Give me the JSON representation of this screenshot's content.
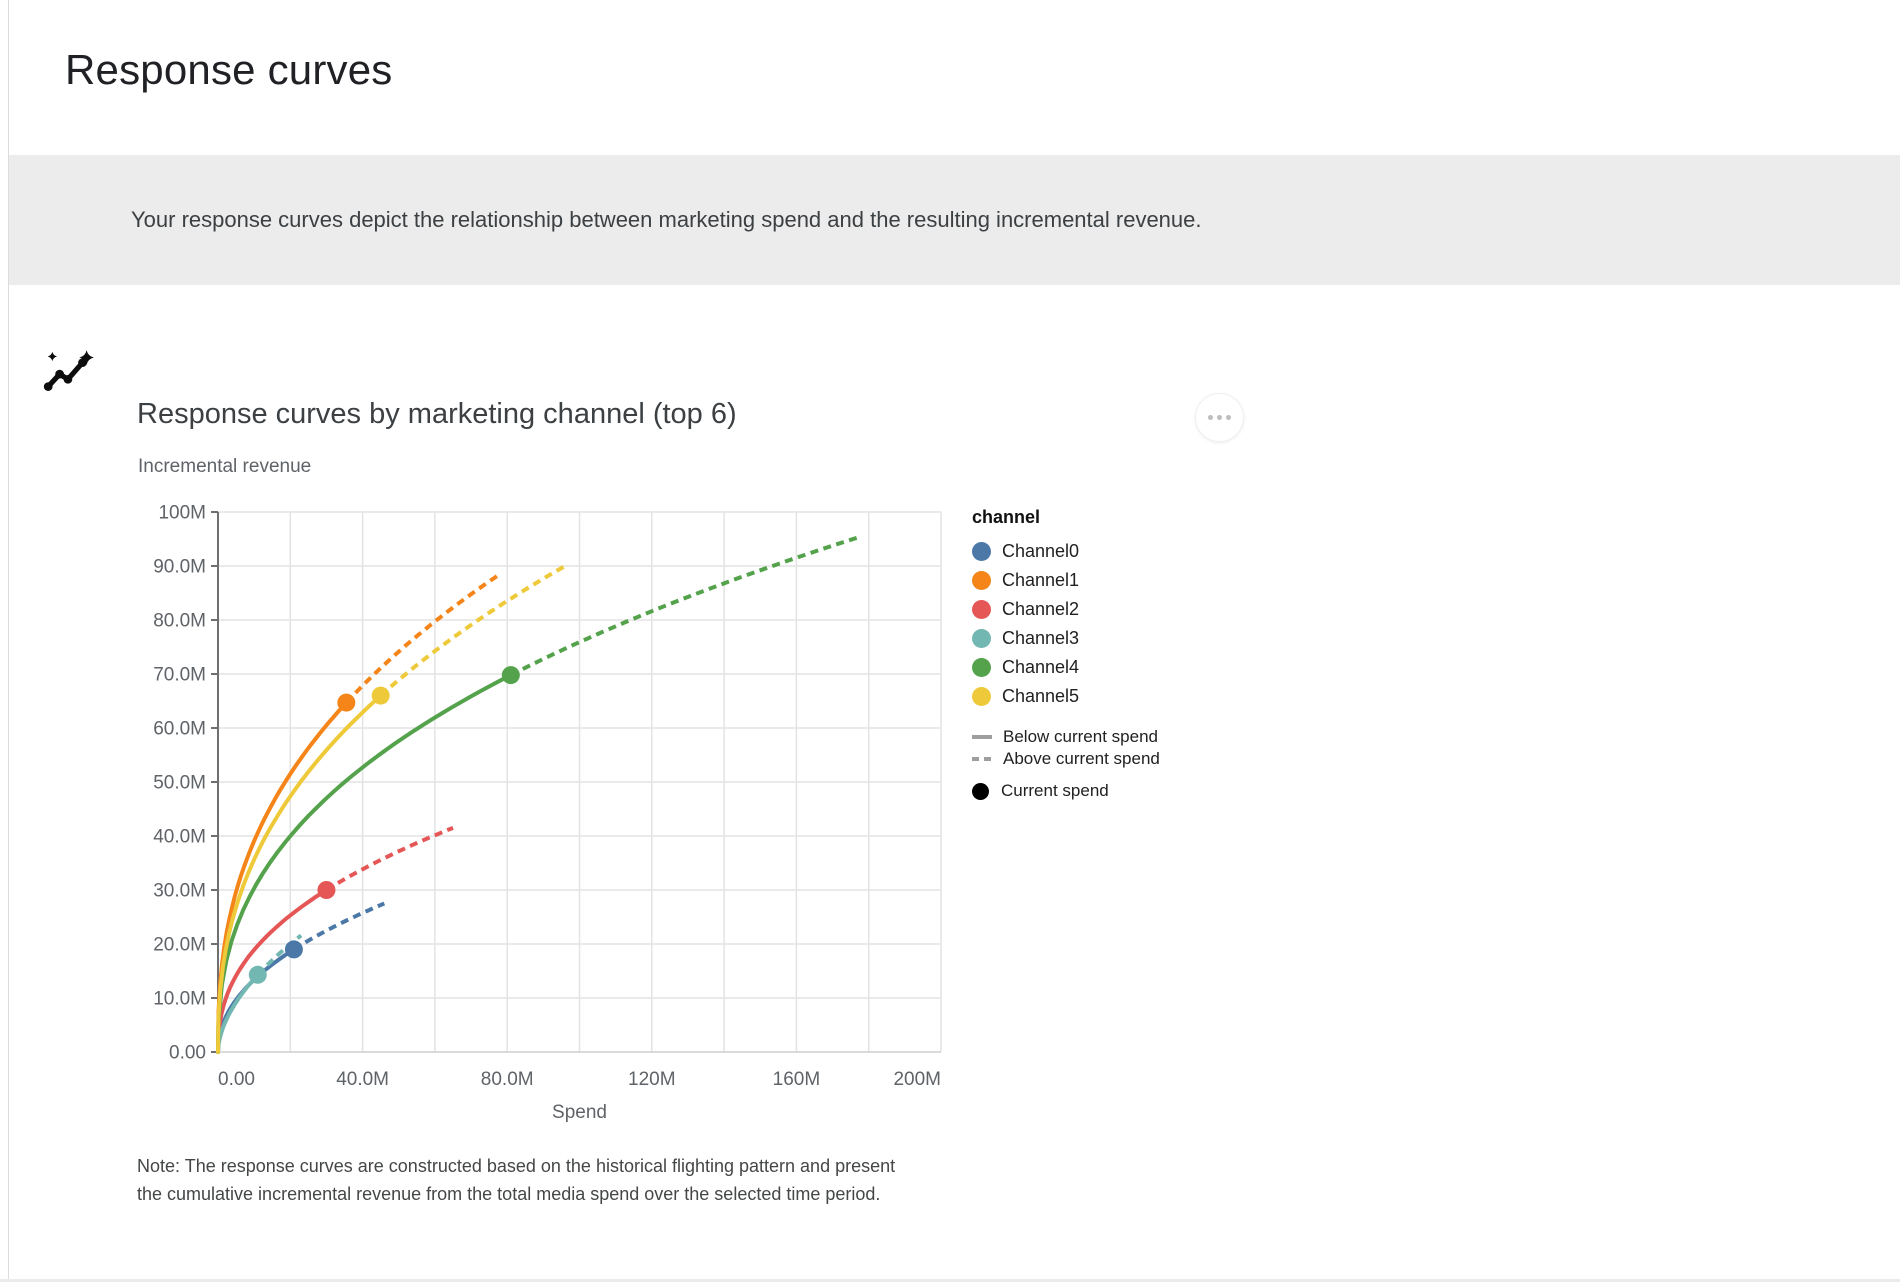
{
  "page": {
    "title": "Response curves",
    "banner": {
      "icon": "insights-sparkle-icon",
      "text": "Your response curves depict the relationship between marketing spend and the resulting incremental revenue."
    }
  },
  "card": {
    "title": "Response curves by marketing channel (top 6)",
    "menu_icon": "more-options-icon",
    "note": "Note: The response curves are constructed based on the historical flighting pattern and present the cumulative incremental revenue from the total media spend over the selected time period."
  },
  "chart_data": {
    "type": "line",
    "title": "Response curves by marketing channel (top 6)",
    "xlabel": "Spend",
    "ylabel": "Incremental revenue",
    "unit": "millions",
    "xlim": [
      0,
      200
    ],
    "ylim": [
      0,
      100
    ],
    "x_grid_step": 20,
    "y_grid_step": 10,
    "grid": true,
    "legend_position": "right",
    "legend_title": "channel",
    "x_ticks": [
      {
        "value": 0,
        "label": "0.00"
      },
      {
        "value": 40,
        "label": "40.0M"
      },
      {
        "value": 80,
        "label": "80.0M"
      },
      {
        "value": 120,
        "label": "120M"
      },
      {
        "value": 160,
        "label": "160M"
      },
      {
        "value": 200,
        "label": "200M"
      }
    ],
    "y_ticks": [
      {
        "value": 0,
        "label": "0.00"
      },
      {
        "value": 10,
        "label": "10.0M"
      },
      {
        "value": 20,
        "label": "20.0M"
      },
      {
        "value": 30,
        "label": "30.0M"
      },
      {
        "value": 40,
        "label": "40.0M"
      },
      {
        "value": 50,
        "label": "50.0M"
      },
      {
        "value": 60,
        "label": "60.0M"
      },
      {
        "value": 70,
        "label": "70.0M"
      },
      {
        "value": 80,
        "label": "80.0M"
      },
      {
        "value": 90,
        "label": "90.0M"
      },
      {
        "value": 100,
        "label": "100M"
      }
    ],
    "series": [
      {
        "name": "Channel0",
        "color": "#4c78a8",
        "current_spend": {
          "spend": 21,
          "revenue": 19
        },
        "curve_end": {
          "spend": 46,
          "revenue": 27.5
        }
      },
      {
        "name": "Channel1",
        "color": "#f58518",
        "current_spend": {
          "spend": 35.5,
          "revenue": 64.7
        },
        "curve_end": {
          "spend": 78,
          "revenue": 88.5
        }
      },
      {
        "name": "Channel2",
        "color": "#e45756",
        "current_spend": {
          "spend": 30,
          "revenue": 30
        },
        "curve_end": {
          "spend": 65,
          "revenue": 41.5
        }
      },
      {
        "name": "Channel3",
        "color": "#72b7b2",
        "current_spend": {
          "spend": 11,
          "revenue": 14.3
        },
        "curve_end": {
          "spend": 23,
          "revenue": 21.6
        }
      },
      {
        "name": "Channel4",
        "color": "#54a24b",
        "current_spend": {
          "spend": 81,
          "revenue": 69.8
        },
        "curve_end": {
          "spend": 178,
          "revenue": 95.5
        }
      },
      {
        "name": "Channel5",
        "color": "#eeca3b",
        "current_spend": {
          "spend": 45,
          "revenue": 66
        },
        "curve_end": {
          "spend": 96,
          "revenue": 90
        }
      }
    ],
    "line_styles": [
      {
        "style": "solid",
        "label": "Below current spend",
        "color": "#9e9e9e"
      },
      {
        "style": "dashed",
        "label": "Above current spend",
        "color": "#9e9e9e"
      }
    ],
    "marker": {
      "label": "Current spend",
      "color": "#000000"
    }
  }
}
